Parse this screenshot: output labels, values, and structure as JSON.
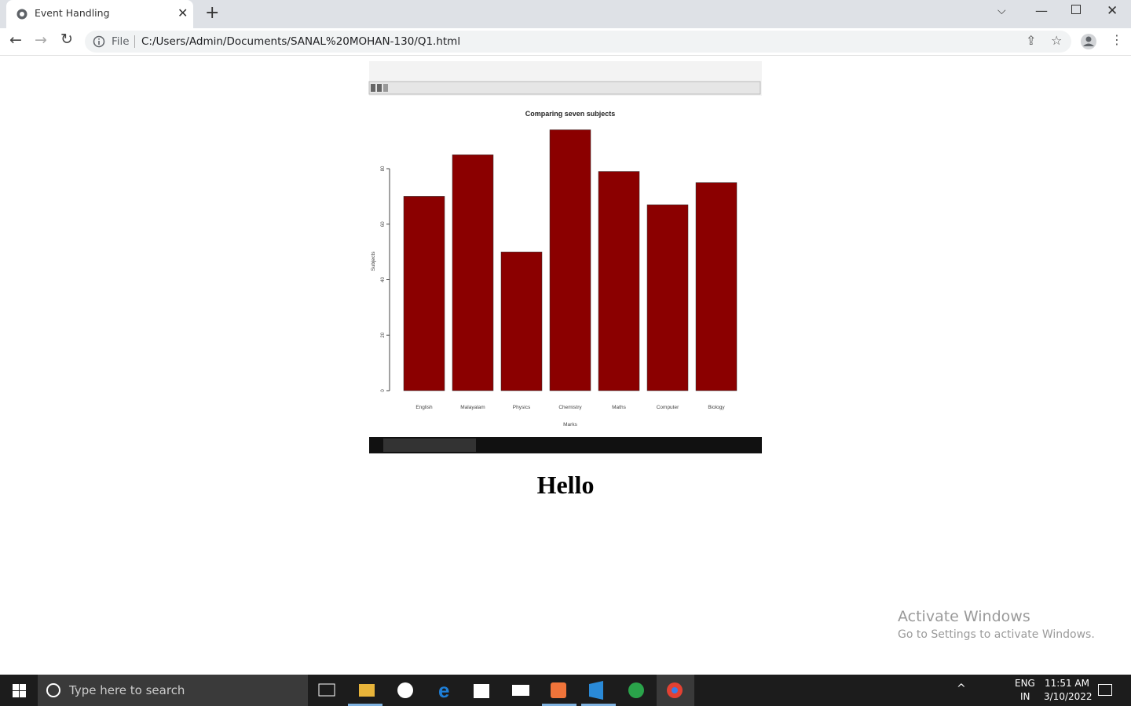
{
  "browser": {
    "tab_title": "Event Handling",
    "scheme_label": "File",
    "url": "C:/Users/Admin/Documents/SANAL%20MOHAN-130/Q1.html"
  },
  "chart_data": {
    "type": "bar",
    "title": "Comparing seven subjects",
    "x_label": "Marks",
    "y_label": "Subjects",
    "categories": [
      "English",
      "Malayalam",
      "Physics",
      "Chemistry",
      "Maths",
      "Computer",
      "Biology"
    ],
    "values": [
      70,
      85,
      50,
      94,
      79,
      67,
      75
    ],
    "color": "#8b0000",
    "ylim": [
      0,
      100
    ],
    "yticks": [
      0,
      20,
      40,
      60,
      80
    ]
  },
  "page": {
    "heading": "Hello"
  },
  "watermark": {
    "title": "Activate Windows",
    "subtitle": "Go to Settings to activate Windows."
  },
  "taskbar": {
    "search_placeholder": "Type here to search",
    "language": "ENG",
    "region": "IN",
    "time": "11:51 AM",
    "date": "3/10/2022"
  }
}
